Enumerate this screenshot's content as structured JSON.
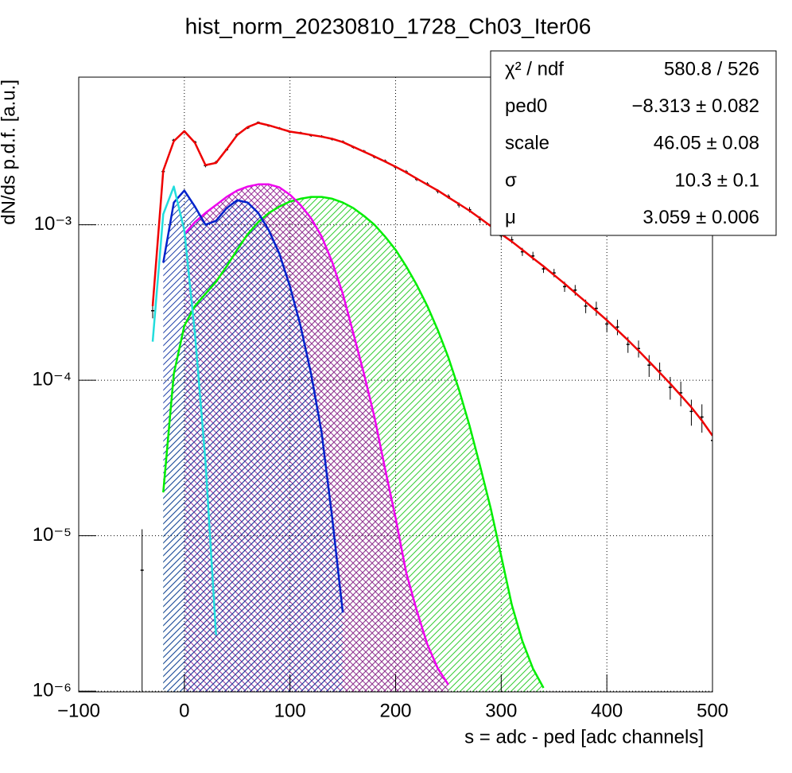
{
  "chart_data": {
    "type": "line",
    "title": "hist_norm_20230810_1728_Ch03_Iter06",
    "x_label": "s = adc - ped [adc channels]",
    "y_label": "dN/ds p.d.f. [a.u.]",
    "xlim": [
      -100,
      500
    ],
    "ylim": [
      9.9e-07,
      0.0089
    ],
    "ylog": true,
    "grid": true,
    "xticks": [
      {
        "value": -100,
        "label": "−100"
      },
      0,
      100,
      200,
      300,
      400,
      500
    ],
    "yticks": [
      {
        "value": 1e-06,
        "label": "10⁻⁶"
      },
      {
        "value": 1e-05,
        "label": "10⁻⁵"
      },
      {
        "value": 0.0001,
        "label": "10⁻⁴"
      },
      {
        "value": 0.001,
        "label": "10⁻³"
      }
    ],
    "series": [
      {
        "kind": "fill",
        "color": "#00ee00",
        "hatch": "#33cc33",
        "x": [
          -20,
          -10,
          0,
          10,
          20,
          30,
          40,
          50,
          60,
          70,
          80,
          90,
          100,
          110,
          120,
          130,
          140,
          150,
          160,
          170,
          180,
          190,
          200,
          210,
          220,
          230,
          240,
          250,
          260,
          270,
          280,
          290,
          300,
          310,
          320,
          330,
          340
        ],
        "values": [
          1.9e-05,
          0.00011,
          0.000224,
          0.0003,
          0.00036,
          0.00043,
          0.00054,
          0.00069,
          0.00087,
          0.00104,
          0.00119,
          0.00131,
          0.00141,
          0.00147,
          0.00151,
          0.00151,
          0.00147,
          0.00139,
          0.00128,
          0.00114,
          0.001,
          0.00084,
          0.00069,
          0.00054,
          0.00041,
          0.0003,
          0.00021,
          0.00014,
          8.7e-05,
          5.1e-05,
          2.8e-05,
          1.5e-05,
          7.4e-06,
          3.6e-06,
          2.1e-06,
          1.4e-06,
          1.05e-06
        ]
      },
      {
        "kind": "fill",
        "color": "#ee00ee",
        "hatch": "#993399",
        "x": [
          0,
          10,
          20,
          30,
          40,
          50,
          60,
          70,
          80,
          90,
          100,
          110,
          120,
          130,
          140,
          150,
          160,
          170,
          180,
          190,
          200,
          210,
          220,
          230,
          240,
          250
        ],
        "values": [
          0.00087,
          0.00104,
          0.00119,
          0.00134,
          0.00151,
          0.00166,
          0.00176,
          0.00182,
          0.00182,
          0.00174,
          0.00156,
          0.00134,
          0.0011,
          0.00084,
          0.000575,
          0.00036,
          0.0002,
          0.00011,
          5.8e-05,
          2.7e-05,
          1.3e-05,
          5.8e-06,
          3.3e-06,
          2e-06,
          1.4e-06,
          1.1e-06
        ]
      },
      {
        "kind": "fill",
        "color": "#0022cc",
        "hatch": "#2244aa",
        "x": [
          -20,
          -10,
          0,
          10,
          20,
          30,
          40,
          50,
          60,
          70,
          80,
          90,
          100,
          110,
          120,
          130,
          140,
          150
        ],
        "values": [
          0.00057,
          0.00139,
          0.00166,
          0.00131,
          0.001,
          0.00106,
          0.00128,
          0.00144,
          0.00139,
          0.00119,
          0.00092,
          0.00065,
          0.0004,
          0.000224,
          0.00011,
          4.6e-05,
          1.3e-05,
          3.2e-06
        ]
      },
      {
        "kind": "line",
        "color": "#22dddd",
        "x": [
          -30,
          -20,
          -10,
          0,
          10,
          20,
          30
        ],
        "values": [
          0.000177,
          0.00117,
          0.00176,
          0.00092,
          0.0002,
          3e-05,
          2.3e-06
        ]
      },
      {
        "kind": "errorbar",
        "color": "#000000",
        "x": [
          -40,
          -30,
          -20,
          -10,
          0,
          10,
          20,
          30,
          40,
          50,
          60,
          70,
          80,
          90,
          100,
          110,
          120,
          130,
          140,
          150,
          160,
          170,
          180,
          190,
          200,
          210,
          220,
          230,
          240,
          250,
          260,
          270,
          280,
          290,
          300,
          310,
          320,
          330,
          340,
          350,
          360,
          370,
          380,
          390,
          400,
          410,
          420,
          430,
          440,
          450,
          460,
          470,
          480,
          490,
          500
        ],
        "values": [
          6e-06,
          0.00028,
          0.0022,
          0.0035,
          0.00395,
          0.0034,
          0.0024,
          0.00252,
          0.00304,
          0.0038,
          0.0042,
          0.00455,
          0.00433,
          0.00418,
          0.00395,
          0.0039,
          0.00375,
          0.0037,
          0.00355,
          0.00342,
          0.00315,
          0.00297,
          0.00273,
          0.00257,
          0.00234,
          0.00219,
          0.00196,
          0.00183,
          0.00164,
          0.00152,
          0.00134,
          0.00125,
          0.00108,
          0.001,
          0.00085,
          0.0008,
          0.00067,
          0.00063,
          0.00052,
          0.00049,
          0.0004,
          0.00038,
          0.0003,
          0.00029,
          0.00023,
          0.00022,
          0.00017,
          0.00016,
          0.000125,
          0.000115,
          9e-05,
          8.3e-05,
          6.3e-05,
          5.8e-05,
          4.1e-05
        ],
        "errors": [
          5e-06,
          3e-05,
          6e-05,
          7e-05,
          7e-05,
          7e-05,
          6e-05,
          6e-05,
          6e-05,
          7e-05,
          7e-05,
          7e-05,
          7e-05,
          7e-05,
          7e-05,
          7e-05,
          7e-05,
          7e-05,
          7e-05,
          7e-05,
          6e-05,
          6e-05,
          6e-05,
          6e-05,
          6e-05,
          6e-05,
          5e-05,
          5e-05,
          5e-05,
          5e-05,
          5e-05,
          5e-05,
          5e-05,
          4e-05,
          4e-05,
          4e-05,
          4e-05,
          4e-05,
          3e-05,
          3e-05,
          3e-05,
          3e-05,
          3e-05,
          3e-05,
          2.5e-05,
          2.5e-05,
          2e-05,
          2e-05,
          2e-05,
          1.5e-05,
          1.5e-05,
          1.5e-05,
          1.2e-05,
          1.2e-05,
          1e-05
        ]
      },
      {
        "kind": "line",
        "color": "#ee0000",
        "x": [
          -30,
          -20,
          -10,
          0,
          10,
          20,
          30,
          40,
          50,
          60,
          70,
          80,
          90,
          100,
          110,
          120,
          130,
          140,
          150,
          160,
          170,
          180,
          190,
          200,
          210,
          220,
          230,
          240,
          250,
          260,
          270,
          280,
          290,
          300,
          310,
          320,
          330,
          340,
          350,
          360,
          370,
          380,
          390,
          400,
          410,
          420,
          430,
          440,
          450,
          460,
          470,
          480,
          490,
          500
        ],
        "values": [
          0.0003,
          0.00223,
          0.00345,
          0.004,
          0.00337,
          0.00242,
          0.0025,
          0.00306,
          0.00378,
          0.00425,
          0.00452,
          0.00436,
          0.00416,
          0.00397,
          0.00388,
          0.00378,
          0.00369,
          0.00357,
          0.0034,
          0.00317,
          0.00295,
          0.00275,
          0.00255,
          0.00236,
          0.00217,
          0.00198,
          0.00181,
          0.00166,
          0.0015,
          0.00136,
          0.00123,
          0.0011,
          0.00098,
          0.00087,
          0.00078,
          0.00069,
          0.00061,
          0.00054,
          0.000475,
          0.000418,
          0.000365,
          0.000319,
          0.000279,
          0.000243,
          0.00021,
          0.000181,
          0.000155,
          0.000132,
          0.000112,
          9.5e-05,
          8e-05,
          6.7e-05,
          5.5e-05,
          4.4e-05
        ]
      }
    ],
    "stats": [
      {
        "name": "χ² / ndf",
        "value": "580.8 / 526"
      },
      {
        "name": "ped0",
        "value": "−8.313 ± 0.082"
      },
      {
        "name": "scale",
        "value": "46.05 ± 0.08"
      },
      {
        "name": "σ",
        "value": "10.3 ± 0.1"
      },
      {
        "name": "μ",
        "value": "3.059 ± 0.006"
      }
    ]
  }
}
